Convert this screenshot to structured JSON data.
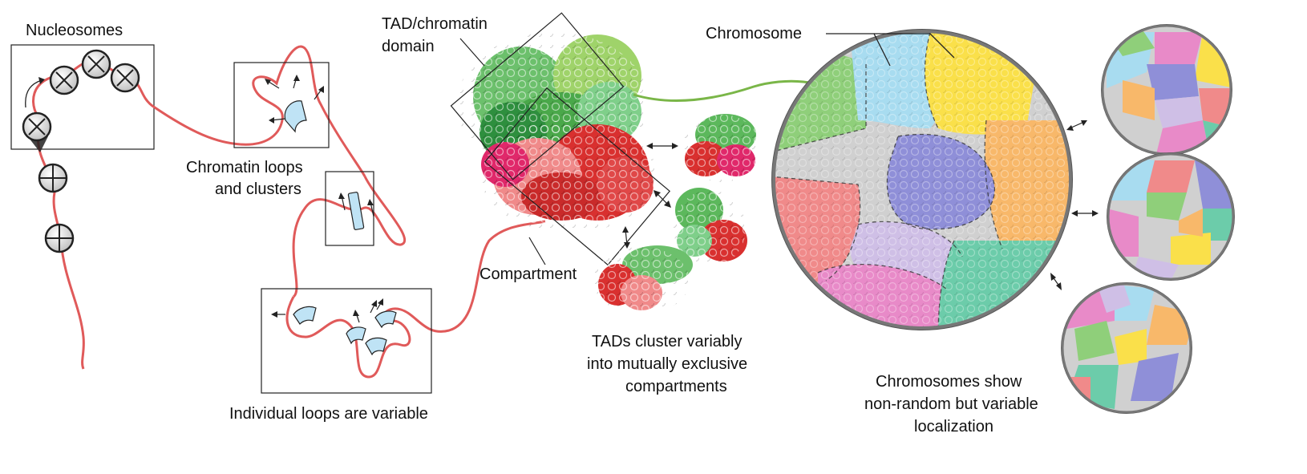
{
  "labels": {
    "nucleosomes": "Nucleosomes",
    "loops_line1": "Chromatin loops",
    "loops_line2": "and clusters",
    "individual_loops": "Individual loops are variable",
    "tad_line1": "TAD/chromatin",
    "tad_line2": "domain",
    "compartment": "Compartment",
    "tads_line1": "TADs cluster variably",
    "tads_line2": "into mutually exclusive",
    "tads_line3": "compartments",
    "chromosome": "Chromosome",
    "chrom_line1": "Chromosomes show",
    "chrom_line2": "non-random but variable",
    "chrom_line3": "localization"
  },
  "colors": {
    "chromatin_fiber": "#e05a5a",
    "protein_clamp": "#bfe3f5",
    "tad_green": "#5cb85c",
    "tad_red": "#d9302f",
    "nucleus_border": "#777777"
  },
  "territory_colors": [
    "#a8dcf0",
    "#fae04a",
    "#8fcf7a",
    "#8f8fd8",
    "#f8b86a",
    "#d0d0d0",
    "#f08a8a",
    "#cfbfe6",
    "#e88ac8",
    "#6cccaa"
  ]
}
